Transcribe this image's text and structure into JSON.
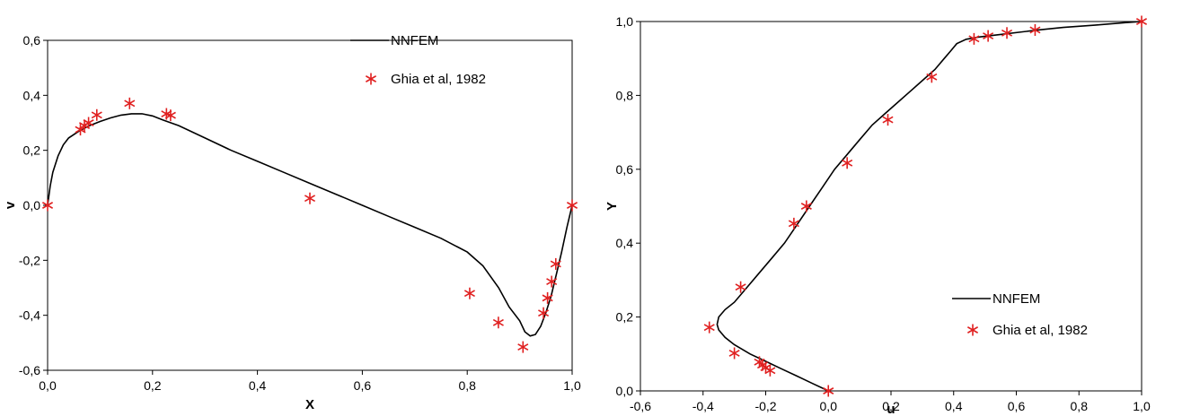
{
  "chart_data": [
    {
      "type": "line",
      "xlabel": "X",
      "ylabel": "v",
      "xlim": [
        0,
        1
      ],
      "ylim": [
        -0.6,
        0.6
      ],
      "xticks": [
        "0,0",
        "0,2",
        "0,4",
        "0,6",
        "0,8",
        "1,0"
      ],
      "yticks": [
        "0,6",
        "0,4",
        "0,2",
        "0,0",
        "-0,2",
        "-0,4",
        "-0,6"
      ],
      "legend_position": "top-right",
      "series": [
        {
          "name": "NNFEM",
          "style": "line",
          "color": "#000000",
          "x": [
            0.0,
            0.005,
            0.01,
            0.02,
            0.03,
            0.04,
            0.06,
            0.08,
            0.1,
            0.12,
            0.14,
            0.16,
            0.18,
            0.2,
            0.22,
            0.25,
            0.3,
            0.35,
            0.4,
            0.45,
            0.5,
            0.55,
            0.6,
            0.65,
            0.7,
            0.75,
            0.8,
            0.83,
            0.86,
            0.88,
            0.9,
            0.91,
            0.92,
            0.93,
            0.94,
            0.95,
            0.96,
            0.97,
            0.98,
            0.99,
            1.0
          ],
          "y": [
            0.0,
            0.07,
            0.12,
            0.18,
            0.22,
            0.245,
            0.27,
            0.29,
            0.305,
            0.318,
            0.328,
            0.333,
            0.333,
            0.325,
            0.31,
            0.29,
            0.245,
            0.2,
            0.16,
            0.12,
            0.08,
            0.04,
            0.0,
            -0.04,
            -0.08,
            -0.12,
            -0.17,
            -0.22,
            -0.3,
            -0.37,
            -0.42,
            -0.46,
            -0.475,
            -0.47,
            -0.44,
            -0.39,
            -0.33,
            -0.25,
            -0.17,
            -0.08,
            0.0
          ]
        },
        {
          "name": "Ghia et al, 1982",
          "style": "marker",
          "color": "#e02020",
          "x": [
            0.0,
            0.0625,
            0.0703,
            0.0781,
            0.0938,
            0.1563,
            0.2266,
            0.2344,
            0.5,
            0.8047,
            0.8594,
            0.9063,
            0.9453,
            0.9531,
            0.9609,
            0.9688,
            1.0
          ],
          "y": [
            0.0,
            0.2753,
            0.29,
            0.3,
            0.3285,
            0.3707,
            0.3325,
            0.3273,
            0.0253,
            -0.3203,
            -0.4264,
            -0.5155,
            -0.3919,
            -0.3371,
            -0.2774,
            -0.2133,
            0.0
          ]
        }
      ]
    },
    {
      "type": "line",
      "xlabel": "u",
      "ylabel": "Y",
      "xlim": [
        -0.6,
        1.0
      ],
      "ylim": [
        0,
        1
      ],
      "xticks": [
        "-0,6",
        "-0,4",
        "-0,2",
        "0,0",
        "0,2",
        "0,4",
        "0,6",
        "0,8",
        "1,0"
      ],
      "yticks": [
        "1,0",
        "0,8",
        "0,6",
        "0,4",
        "0,2",
        "0,0"
      ],
      "legend_position": "bottom-right",
      "series": [
        {
          "name": "NNFEM",
          "style": "line",
          "color": "#000000",
          "x": [
            0.0,
            -0.05,
            -0.1,
            -0.15,
            -0.2,
            -0.25,
            -0.3,
            -0.33,
            -0.35,
            -0.355,
            -0.35,
            -0.33,
            -0.3,
            -0.26,
            -0.22,
            -0.18,
            -0.14,
            -0.1,
            -0.06,
            -0.02,
            0.02,
            0.06,
            0.1,
            0.14,
            0.18,
            0.22,
            0.26,
            0.3,
            0.34,
            0.37,
            0.39,
            0.41,
            0.44,
            0.48,
            0.55,
            0.62,
            0.68,
            0.75,
            0.85,
            0.95,
            1.0
          ],
          "y": [
            0.0,
            0.02,
            0.04,
            0.06,
            0.08,
            0.1,
            0.125,
            0.145,
            0.165,
            0.18,
            0.2,
            0.22,
            0.24,
            0.28,
            0.32,
            0.36,
            0.4,
            0.45,
            0.5,
            0.55,
            0.6,
            0.64,
            0.68,
            0.72,
            0.75,
            0.78,
            0.81,
            0.84,
            0.87,
            0.9,
            0.92,
            0.94,
            0.952,
            0.958,
            0.965,
            0.972,
            0.978,
            0.984,
            0.99,
            0.997,
            1.0
          ]
        },
        {
          "name": "Ghia et al, 1982",
          "style": "marker",
          "color": "#e02020",
          "x": [
            0.0,
            -0.186,
            -0.2,
            -0.21,
            -0.22,
            -0.3,
            -0.38,
            -0.28,
            -0.11,
            -0.07,
            0.06,
            0.19,
            0.33,
            0.465,
            0.51,
            0.57,
            0.66,
            1.0
          ],
          "y": [
            0.0,
            0.055,
            0.063,
            0.07,
            0.078,
            0.102,
            0.172,
            0.281,
            0.453,
            0.5,
            0.617,
            0.734,
            0.85,
            0.953,
            0.961,
            0.969,
            0.977,
            1.0
          ]
        }
      ]
    }
  ]
}
